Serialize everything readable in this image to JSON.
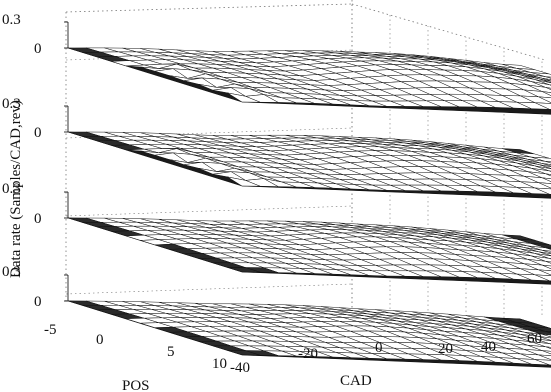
{
  "chart_data": {
    "type": "surface",
    "layout": "stacked-3d-surfaces",
    "grid": true,
    "colors": {
      "surface_fill": "#ffffff",
      "surface_line": "#111111",
      "grid": "#777777"
    },
    "axes": {
      "x": {
        "label": "CAD",
        "range": [
          -40,
          60
        ],
        "ticks": [
          "-40",
          "-20",
          "0",
          "20",
          "40",
          "60"
        ]
      },
      "y": {
        "label": "POS",
        "range": [
          -8,
          10
        ],
        "ticks": [
          "-5",
          "0",
          "5",
          "10"
        ]
      },
      "z": {
        "label": "Data rate (Samples/CAD,rev)",
        "range": [
          0,
          0.3
        ],
        "ticks": [
          "0",
          "0.3"
        ]
      }
    },
    "panels": [
      {
        "index": 1,
        "amplitude": 1.0,
        "has_spikes": true,
        "peak_cad": 20
      },
      {
        "index": 2,
        "amplitude": 0.85,
        "has_spikes": true,
        "peak_cad": 18
      },
      {
        "index": 3,
        "amplitude": 0.8,
        "has_spikes": false,
        "peak_cad": 15
      },
      {
        "index": 4,
        "amplitude": 0.65,
        "has_spikes": false,
        "peak_cad": 10
      }
    ]
  }
}
